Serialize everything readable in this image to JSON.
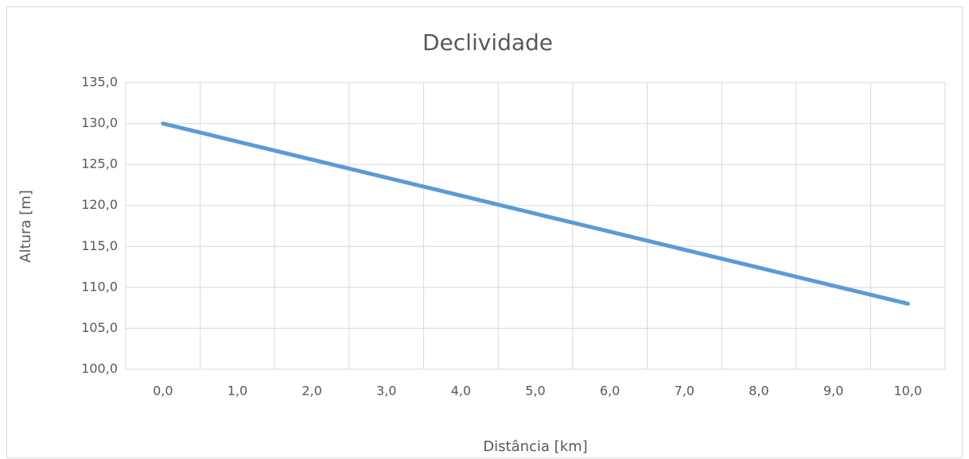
{
  "chart_data": {
    "type": "line",
    "title": "Declividade",
    "x_label": "Distância [km]",
    "y_label": "Altura [m]",
    "categories": [
      "0,0",
      "1,0",
      "2,0",
      "3,0",
      "4,0",
      "5,0",
      "6,0",
      "7,0",
      "8,0",
      "9,0",
      "10,0"
    ],
    "series": [
      {
        "name": "Altura",
        "color": "#5b9bd5",
        "values": [
          130,
          127.8,
          125.6,
          123.4,
          121.2,
          119,
          116.8,
          114.6,
          112.4,
          110.2,
          108
        ]
      }
    ],
    "ylim": [
      100,
      135
    ],
    "yticks": [
      {
        "value": 100,
        "label": "100,0"
      },
      {
        "value": 105,
        "label": "105,0"
      },
      {
        "value": 110,
        "label": "110,0"
      },
      {
        "value": 115,
        "label": "115,0"
      },
      {
        "value": 120,
        "label": "120,0"
      },
      {
        "value": 125,
        "label": "125,0"
      },
      {
        "value": 130,
        "label": "130,0"
      },
      {
        "value": 135,
        "label": "135,0"
      }
    ],
    "grid": true
  }
}
